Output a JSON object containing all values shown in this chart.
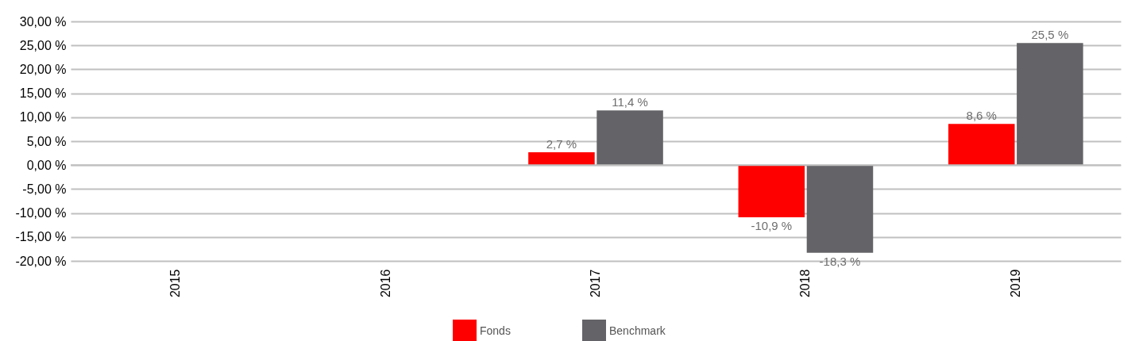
{
  "chart_data": {
    "type": "bar",
    "categories": [
      "2015",
      "2016",
      "2017",
      "2018",
      "2019"
    ],
    "series": [
      {
        "name": "Fonds",
        "color": "#ff0000",
        "values": [
          null,
          null,
          2.7,
          -10.9,
          8.6
        ],
        "value_labels": [
          null,
          null,
          "2,7 %",
          "-10,9 %",
          "8,6 %"
        ]
      },
      {
        "name": "Benchmark",
        "color": "#646468",
        "values": [
          null,
          null,
          11.4,
          -18.3,
          25.5
        ],
        "value_labels": [
          null,
          null,
          "11,4 %",
          "-18,3 %",
          "25,5 %"
        ]
      }
    ],
    "ylim": [
      -20,
      30
    ],
    "yticks": [
      {
        "value": -20,
        "label": "-20,00 %"
      },
      {
        "value": -15,
        "label": "-15,00 %"
      },
      {
        "value": -10,
        "label": "-10,00 %"
      },
      {
        "value": -5,
        "label": "-5,00 %"
      },
      {
        "value": 0,
        "label": "0,00 %"
      },
      {
        "value": 5,
        "label": "5,00 %"
      },
      {
        "value": 10,
        "label": "10,00 %"
      },
      {
        "value": 15,
        "label": "15,00 %"
      },
      {
        "value": 20,
        "label": "20,00 %"
      },
      {
        "value": 25,
        "label": "25,00 %"
      },
      {
        "value": 30,
        "label": "30,00 %"
      }
    ],
    "grid": "y",
    "legend": "bottom"
  }
}
